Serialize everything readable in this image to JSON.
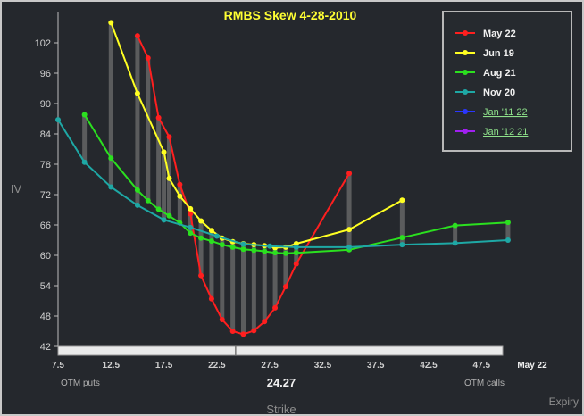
{
  "chart_data": {
    "type": "line",
    "title": "RMBS Skew 4-28-2010",
    "ylabel": "IV",
    "xlabel": "Strike",
    "ylim": [
      42,
      108
    ],
    "xlim": [
      7.5,
      49.5
    ],
    "y_ticks": [
      "102",
      "96",
      "90",
      "84",
      "78",
      "72",
      "66",
      "60",
      "54",
      "48",
      "42"
    ],
    "x_ticks": [
      "7.5",
      "12.5",
      "17.5",
      "22.5",
      "27.5",
      "32.5",
      "37.5",
      "42.5",
      "47.5"
    ],
    "x_tick_values": [
      7.5,
      12.5,
      17.5,
      22.5,
      27.5,
      32.5,
      37.5,
      42.5,
      47.5
    ],
    "grid": false,
    "legend_position": "top-right",
    "spot_label": "24.27",
    "spot": 24.27,
    "otm_puts_label": "OTM puts",
    "otm_calls_label": "OTM calls",
    "expiry_selected": "May 22",
    "expiry_label": "Expiry",
    "series": [
      {
        "name": "May 22",
        "color": "#ff1f1f",
        "x": [
          15,
          16,
          17,
          18,
          19,
          20,
          21,
          22,
          23,
          24,
          25,
          26,
          27,
          28,
          29,
          30,
          35
        ],
        "y": [
          103.4,
          99,
          87.2,
          83.4,
          74,
          68.2,
          56,
          51.4,
          47.3,
          45,
          44.4,
          45.1,
          46.9,
          49.6,
          53.8,
          58.3,
          76.2
        ]
      },
      {
        "name": "Jun 19",
        "color": "#ffff22",
        "x": [
          12.5,
          15,
          17.5,
          18,
          19,
          20,
          21,
          22,
          23,
          24,
          25,
          26,
          27,
          28,
          29,
          30,
          35,
          40
        ],
        "y": [
          106,
          92,
          80.4,
          75.2,
          71.7,
          69.2,
          66.8,
          64.9,
          63.4,
          62.7,
          62.3,
          62.1,
          61.9,
          61.5,
          61.6,
          62.3,
          65.1,
          70.9
        ]
      },
      {
        "name": "Aug 21",
        "color": "#2be01f",
        "x": [
          10,
          12.5,
          15,
          16,
          17,
          18,
          19,
          20,
          21,
          22,
          23,
          24,
          25,
          26,
          27,
          28,
          29,
          30,
          35,
          40,
          45,
          50
        ],
        "y": [
          87.8,
          79.2,
          72.9,
          70.8,
          69.1,
          67.8,
          66.4,
          64.4,
          63.4,
          62.8,
          62.1,
          61.6,
          61.2,
          61,
          60.8,
          60.5,
          60.4,
          60.5,
          61.1,
          63.5,
          65.9,
          66.5
        ]
      },
      {
        "name": "Nov 20",
        "color": "#1ea8a5",
        "x": [
          7.5,
          10,
          12.5,
          15,
          17.5,
          20,
          22.5,
          25,
          27.5,
          30,
          35,
          40,
          45,
          50
        ],
        "y": [
          86.8,
          78.4,
          73.5,
          69.9,
          67,
          65.5,
          63.8,
          62.2,
          61.8,
          61.6,
          61.6,
          62.1,
          62.4,
          63
        ]
      },
      {
        "name": "Jan '11 22",
        "color": "#2a36ff",
        "x": [],
        "y": []
      },
      {
        "name": "Jan '12 21",
        "color": "#a020f0",
        "x": [],
        "y": []
      }
    ]
  }
}
